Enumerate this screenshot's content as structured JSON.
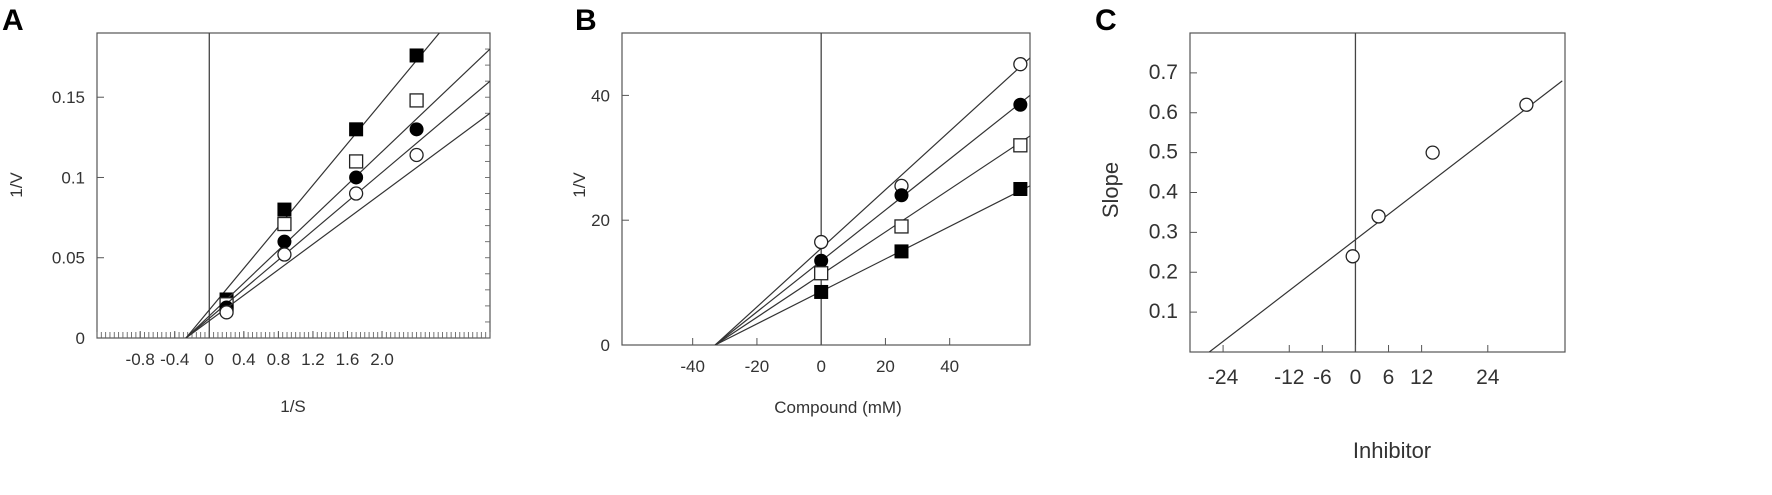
{
  "chart_data": [
    {
      "panel_label": "A",
      "type": "line",
      "xlabel": "1/S",
      "ylabel": "1/V",
      "xlim": [
        -1.3,
        3.25
      ],
      "ylim": [
        0,
        0.19
      ],
      "x_ticks": [
        "-0.8",
        "-0.4",
        "0",
        "0.4",
        "0.8",
        "1.2",
        "1.6",
        "2.0"
      ],
      "y_ticks": [
        "0",
        "0.05",
        "0.1",
        "0.15"
      ],
      "grid": false,
      "series": [
        {
          "marker": "filled-square",
          "x": [
            0.2,
            0.87,
            1.7,
            2.4
          ],
          "y": [
            0.024,
            0.08,
            0.13,
            0.176
          ],
          "fit": [
            [
              -0.27,
              0
            ],
            [
              3.25,
              0.228
            ]
          ]
        },
        {
          "marker": "open-square",
          "x": [
            0.2,
            0.87,
            1.7,
            2.4
          ],
          "y": [
            0.021,
            0.071,
            0.11,
            0.148
          ],
          "fit": [
            [
              -0.27,
              0
            ],
            [
              3.25,
              0.18
            ]
          ]
        },
        {
          "marker": "filled-circle",
          "x": [
            0.2,
            0.87,
            1.7,
            2.4
          ],
          "y": [
            0.019,
            0.06,
            0.1,
            0.13
          ],
          "fit": [
            [
              -0.27,
              0
            ],
            [
              3.25,
              0.16
            ]
          ]
        },
        {
          "marker": "open-circle",
          "x": [
            0.2,
            0.87,
            1.7,
            2.4
          ],
          "y": [
            0.016,
            0.052,
            0.09,
            0.114
          ],
          "fit": [
            [
              -0.27,
              0
            ],
            [
              3.25,
              0.14
            ]
          ]
        }
      ]
    },
    {
      "panel_label": "B",
      "type": "line",
      "xlabel": "Compound (mM)",
      "ylabel": "1/V",
      "xlim": [
        -62,
        65
      ],
      "ylim": [
        0,
        50
      ],
      "x_ticks": [
        "-40",
        "-20",
        "0",
        "20",
        "40"
      ],
      "x_tick_values": [
        -40,
        -20,
        0,
        20,
        40
      ],
      "y_ticks": [
        "0",
        "20",
        "40"
      ],
      "grid": false,
      "series": [
        {
          "marker": "open-circle",
          "x": [
            0,
            25,
            62
          ],
          "y": [
            16.5,
            25.5,
            45
          ],
          "fit": [
            [
              -33,
              0
            ],
            [
              65,
              46
            ]
          ]
        },
        {
          "marker": "filled-circle",
          "x": [
            0,
            25,
            62
          ],
          "y": [
            13.5,
            24,
            38.5
          ],
          "fit": [
            [
              -33,
              0
            ],
            [
              65,
              40
            ]
          ]
        },
        {
          "marker": "open-square",
          "x": [
            0,
            25,
            62
          ],
          "y": [
            11.5,
            19,
            32
          ],
          "fit": [
            [
              -33,
              0
            ],
            [
              65,
              33.5
            ]
          ]
        },
        {
          "marker": "filled-square",
          "x": [
            0,
            25,
            62
          ],
          "y": [
            8.5,
            15,
            25
          ],
          "fit": [
            [
              -33,
              0
            ],
            [
              65,
              25.5
            ]
          ]
        }
      ]
    },
    {
      "panel_label": "C",
      "type": "scatter",
      "xlabel": "Inhibitor",
      "ylabel": "Slope",
      "xlim": [
        -30,
        38
      ],
      "ylim": [
        0,
        0.8
      ],
      "x_ticks": [
        "-24",
        "-12",
        "-6",
        "0",
        "6",
        "12",
        "24"
      ],
      "x_tick_values": [
        -24,
        -12,
        -6,
        0,
        6,
        12,
        24
      ],
      "y_ticks": [
        "0.1",
        "0.2",
        "0.3",
        "0.4",
        "0.5",
        "0.6",
        "0.7"
      ],
      "grid": false,
      "series": [
        {
          "marker": "open-circle",
          "x": [
            -0.5,
            4.2,
            14,
            31
          ],
          "y": [
            0.24,
            0.34,
            0.5,
            0.62
          ],
          "fit": [
            [
              -26.5,
              0
            ],
            [
              37.5,
              0.68
            ]
          ]
        }
      ]
    }
  ]
}
